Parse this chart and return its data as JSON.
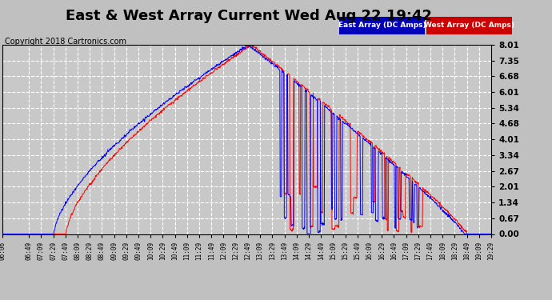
{
  "title": "East & West Array Current Wed Aug 22 19:42",
  "copyright": "Copyright 2018 Cartronics.com",
  "legend_east": "East Array (DC Amps)",
  "legend_west": "West Array (DC Amps)",
  "east_color": "#0000FF",
  "west_color": "#FF0000",
  "legend_east_bg": "#0000BB",
  "legend_west_bg": "#CC0000",
  "background_color": "#C0C0C0",
  "plot_bg_color": "#C8C8C8",
  "grid_color": "#FFFFFF",
  "title_fontsize": 13,
  "copyright_fontsize": 7,
  "ylim": [
    0.0,
    8.01
  ],
  "yticks": [
    0.0,
    0.67,
    1.34,
    2.01,
    2.67,
    3.34,
    4.01,
    4.68,
    5.34,
    6.01,
    6.68,
    7.35,
    8.01
  ],
  "xtick_labels": [
    "06:06",
    "06:49",
    "07:09",
    "07:29",
    "07:49",
    "08:09",
    "08:29",
    "08:49",
    "09:09",
    "09:29",
    "09:49",
    "10:09",
    "10:29",
    "10:49",
    "11:09",
    "11:29",
    "11:49",
    "12:09",
    "12:29",
    "12:49",
    "13:09",
    "13:29",
    "13:49",
    "14:09",
    "14:29",
    "14:49",
    "15:09",
    "15:29",
    "15:49",
    "16:09",
    "16:29",
    "16:49",
    "17:09",
    "17:29",
    "17:49",
    "18:09",
    "18:29",
    "18:49",
    "19:09",
    "19:29"
  ]
}
